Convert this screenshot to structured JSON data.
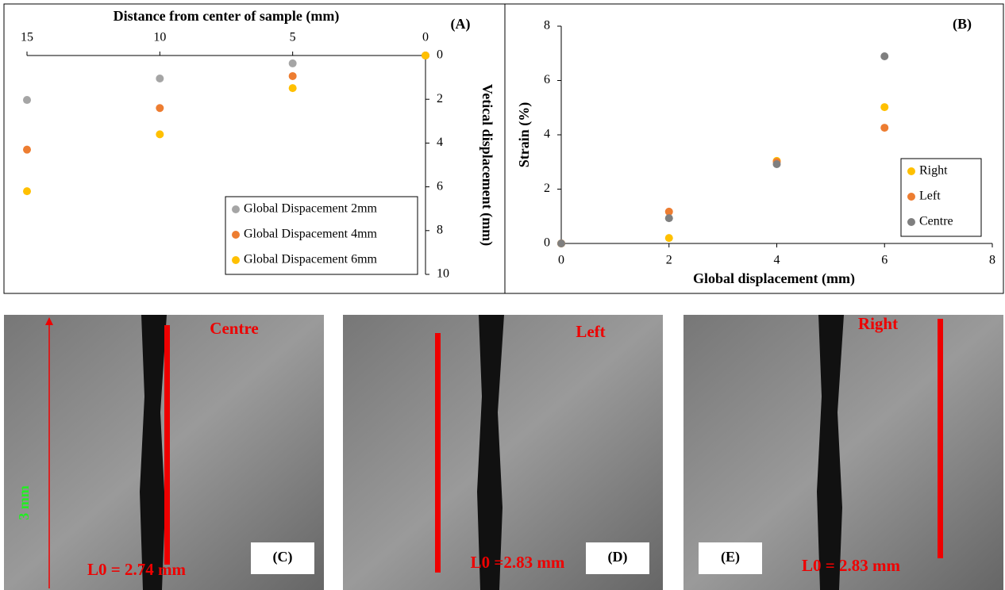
{
  "chart_data": [
    {
      "type": "scatter",
      "title": "(A)",
      "x_label": "Distance from center of sample (mm)",
      "y_label": "Vetical displacement (mm)",
      "xlim": [
        15,
        0
      ],
      "xticks": [
        15,
        10,
        5,
        0
      ],
      "ylim": [
        10,
        0
      ],
      "yticks": [
        0,
        2,
        4,
        6,
        8,
        10
      ],
      "x_axis_side": "top",
      "y_axis_side": "right",
      "grid": false,
      "legend": "lower right",
      "series": [
        {
          "name": "Global Dispacement 2mm",
          "color": "#a5a5a5",
          "x": [
            15,
            10,
            5,
            0
          ],
          "values": [
            2.03,
            1.05,
            0.36,
            0
          ]
        },
        {
          "name": "Global Dispacement 4mm",
          "color": "#ed7d31",
          "x": [
            15,
            10,
            5,
            0
          ],
          "values": [
            4.3,
            2.4,
            0.94,
            0
          ]
        },
        {
          "name": "Global Dispacement 6mm",
          "color": "#ffc000",
          "x": [
            15,
            10,
            5,
            0
          ],
          "values": [
            6.2,
            3.6,
            1.49,
            0
          ]
        }
      ]
    },
    {
      "type": "scatter",
      "title": "(B)",
      "x_label": "Global displacement (mm)",
      "y_label": "Strain  (%)",
      "xlim": [
        0,
        8
      ],
      "xticks": [
        0,
        2,
        4,
        6,
        8
      ],
      "ylim": [
        0,
        8
      ],
      "yticks": [
        0,
        2,
        4,
        6,
        8
      ],
      "x_axis_side": "bottom",
      "y_axis_side": "left",
      "grid": false,
      "legend": "right",
      "series": [
        {
          "name": "Right",
          "color": "#ffc000",
          "x": [
            0,
            2,
            4,
            6
          ],
          "values": [
            0,
            0.2,
            3.04,
            5.02
          ]
        },
        {
          "name": "Left",
          "color": "#ed7d31",
          "x": [
            0,
            2,
            4,
            6
          ],
          "values": [
            0,
            1.17,
            3.0,
            4.26
          ]
        },
        {
          "name": "Centre",
          "color": "#7f7f7f",
          "x": [
            0,
            2,
            4,
            6
          ],
          "values": [
            0,
            0.93,
            2.92,
            6.89
          ]
        }
      ]
    }
  ],
  "panels": [
    {
      "label": "(C)",
      "position": "Centre",
      "length": "L0 = 2.74 mm",
      "scale": "3 mm"
    },
    {
      "label": "(D)",
      "position": "Left",
      "length": "L0 =2.83 mm"
    },
    {
      "label": "(E)",
      "position": "Right",
      "length": "L0 = 2.83 mm"
    }
  ]
}
